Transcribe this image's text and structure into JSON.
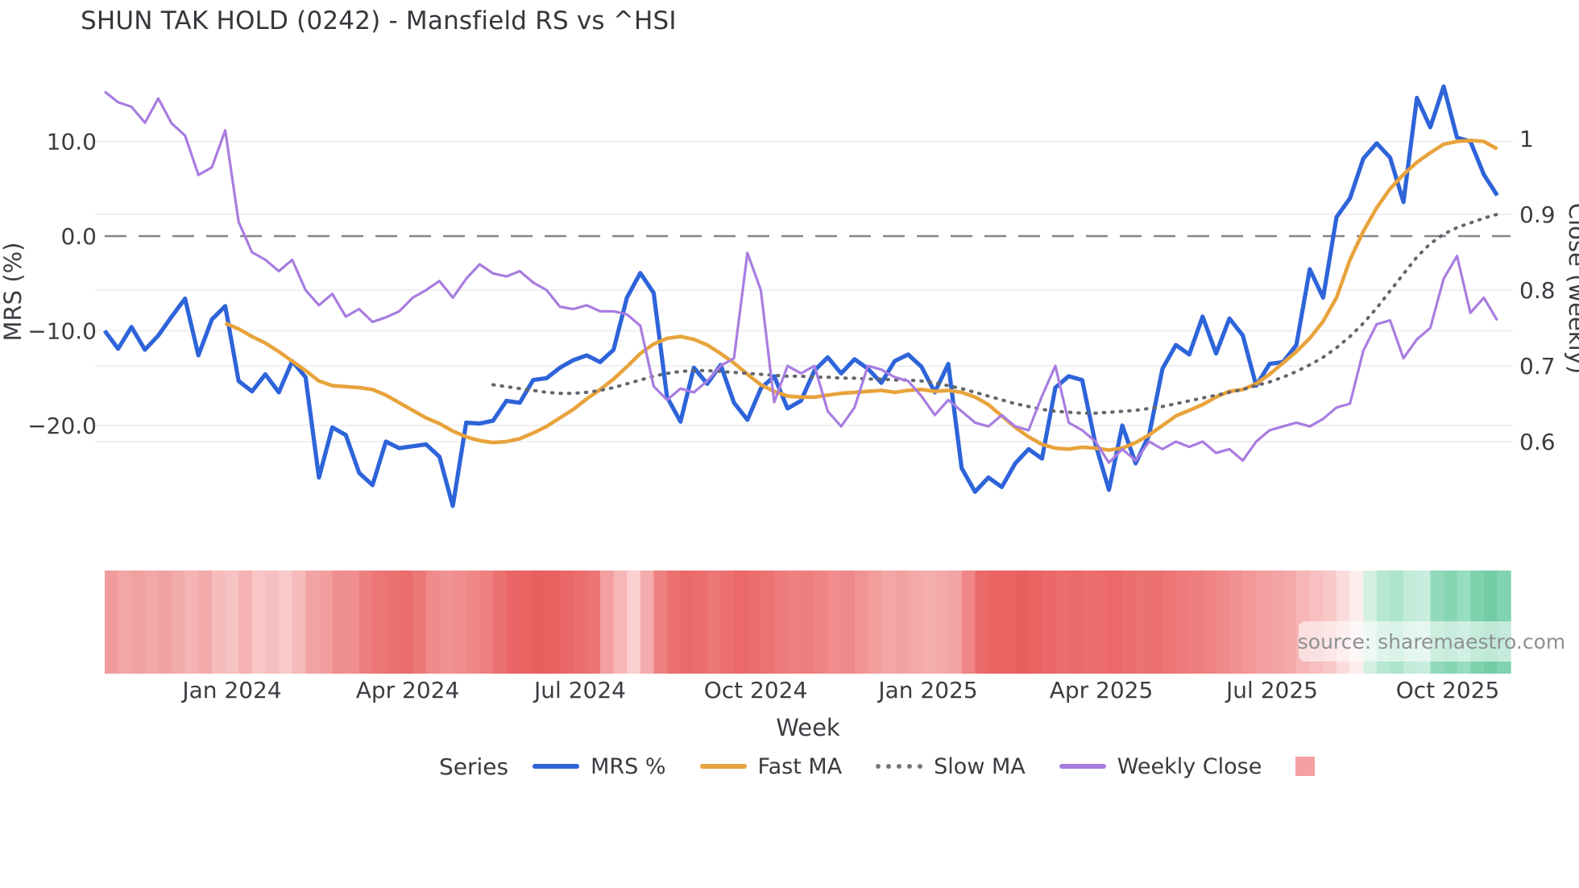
{
  "title": "SHUN TAK HOLD (0242) - Mansfield RS vs ^HSI",
  "source_label": "source: sharemaestro.com",
  "axes": {
    "left": {
      "title": "MRS (%)",
      "tick_labels": [
        "10.0",
        "0.0",
        "−10.0",
        "−20.0"
      ],
      "tick_values": [
        10,
        0,
        -10,
        -20
      ]
    },
    "right": {
      "title": "Close (weekly)",
      "tick_labels": [
        "1",
        "0.9",
        "0.8",
        "0.7",
        "0.6"
      ],
      "tick_values": [
        1,
        0.9,
        0.8,
        0.7,
        0.6
      ]
    },
    "x": {
      "title": "Week",
      "ticks": [
        {
          "label": "Jan 2024",
          "week": 9.5
        },
        {
          "label": "Apr 2024",
          "week": 22.6
        },
        {
          "label": "Jul 2024",
          "week": 35.5
        },
        {
          "label": "Oct 2024",
          "week": 48.6
        },
        {
          "label": "Jan 2025",
          "week": 61.5
        },
        {
          "label": "Apr 2025",
          "week": 74.4
        },
        {
          "label": "Jul 2025",
          "week": 87.2
        },
        {
          "label": "Oct 2025",
          "week": 100.3
        }
      ]
    }
  },
  "legend": {
    "series_title": "Series",
    "items": [
      {
        "label": "MRS %",
        "swatch": "line",
        "color": "#2e64d9"
      },
      {
        "label": "Fast MA",
        "swatch": "line",
        "color": "#e8a33c"
      },
      {
        "label": "Slow MA",
        "swatch": "dotted",
        "color": "#75777e"
      },
      {
        "label": "Weekly Close",
        "swatch": "line",
        "color": "#a87de0"
      },
      {
        "label": "",
        "swatch": "square",
        "color": "#f5a0a5"
      }
    ]
  },
  "colors": {
    "mrs": "#2e64d9",
    "fast_ma": "#e8a33c",
    "slow_ma": "#63666e",
    "weekly_close": "#a87de0",
    "zero_line": "#83838c",
    "gridline": "#ebebf0",
    "tick_text": "#3c3c43"
  },
  "chart_data": {
    "type": "line",
    "title": "SHUN TAK HOLD (0242) - Mansfield RS vs ^HSI",
    "x_unit": "week index, weekly data from Nov 2023 to Nov 2025",
    "xlabel": "Week",
    "ylabel_left": "MRS (%)",
    "ylabel_right": "Close (weekly)",
    "ylim_left": [
      -30,
      17
    ],
    "ylim_right": [
      0.55,
      1.08
    ],
    "zero_reference_line": 0,
    "legend_position": "bottom",
    "grid": true,
    "series": [
      {
        "name": "MRS %",
        "axis": "left",
        "style": "solid",
        "start_week": 0,
        "values": [
          -10.0,
          -11.9,
          -9.6,
          -12.0,
          -10.5,
          -8.5,
          -6.6,
          -12.6,
          -8.8,
          -7.4,
          -15.3,
          -16.4,
          -14.6,
          -16.5,
          -13.2,
          -14.9,
          -25.5,
          -20.2,
          -21.0,
          -25.0,
          -26.3,
          -21.7,
          -22.4,
          -22.2,
          -22.0,
          -23.3,
          -28.5,
          -19.7,
          -19.8,
          -19.5,
          -17.4,
          -17.6,
          -15.2,
          -15.0,
          -13.9,
          -13.1,
          -12.6,
          -13.3,
          -12.0,
          -6.5,
          -3.9,
          -6.0,
          -17.0,
          -19.6,
          -13.9,
          -15.6,
          -13.6,
          -17.6,
          -19.4,
          -16.1,
          -14.8,
          -18.2,
          -17.4,
          -14.2,
          -12.8,
          -14.5,
          -13.0,
          -14.0,
          -15.5,
          -13.2,
          -12.5,
          -13.8,
          -16.5,
          -13.5,
          -24.5,
          -27.0,
          -25.5,
          -26.5,
          -24.0,
          -22.5,
          -23.5,
          -16.0,
          -14.8,
          -15.2,
          -22.0,
          -26.8,
          -20.0,
          -24.0,
          -21.0,
          -14.0,
          -11.5,
          -12.5,
          -8.5,
          -12.4,
          -8.7,
          -10.5,
          -15.8,
          -13.5,
          -13.3,
          -11.5,
          -3.5,
          -6.5,
          2.0,
          4.0,
          8.2,
          9.8,
          8.3,
          3.6,
          14.6,
          11.5,
          15.8,
          10.4,
          10.0,
          6.5,
          4.3
        ]
      },
      {
        "name": "Fast MA",
        "axis": "left",
        "style": "solid",
        "start_week": 9,
        "values": [
          -9.2,
          -9.8,
          -10.6,
          -11.3,
          -12.2,
          -13.2,
          -14.2,
          -15.3,
          -15.8,
          -15.9,
          -16.0,
          -16.2,
          -16.8,
          -17.6,
          -18.4,
          -19.2,
          -19.8,
          -20.6,
          -21.2,
          -21.6,
          -21.8,
          -21.7,
          -21.4,
          -20.8,
          -20.1,
          -19.2,
          -18.3,
          -17.2,
          -16.2,
          -15.1,
          -13.8,
          -12.4,
          -11.4,
          -10.8,
          -10.6,
          -10.9,
          -11.5,
          -12.4,
          -13.4,
          -14.6,
          -15.7,
          -16.4,
          -16.9,
          -17.0,
          -17.0,
          -16.8,
          -16.6,
          -16.5,
          -16.4,
          -16.3,
          -16.5,
          -16.3,
          -16.2,
          -16.4,
          -16.3,
          -16.5,
          -17.0,
          -17.8,
          -19.0,
          -20.2,
          -21.2,
          -22.0,
          -22.4,
          -22.5,
          -22.3,
          -22.4,
          -22.6,
          -22.4,
          -21.8,
          -21.0,
          -20.0,
          -19.0,
          -18.4,
          -17.8,
          -17.0,
          -16.4,
          -16.2,
          -15.6,
          -14.6,
          -13.4,
          -12.2,
          -10.8,
          -9.0,
          -6.5,
          -2.5,
          0.5,
          3.0,
          5.0,
          6.5,
          7.8,
          8.8,
          9.7,
          10.0,
          10.1,
          10.0,
          9.2
        ]
      },
      {
        "name": "Slow MA",
        "axis": "left",
        "style": "dotted",
        "start_week": 29,
        "values": [
          -15.7,
          -15.9,
          -16.1,
          -16.3,
          -16.5,
          -16.6,
          -16.6,
          -16.5,
          -16.3,
          -16.0,
          -15.6,
          -15.2,
          -14.8,
          -14.5,
          -14.3,
          -14.2,
          -14.2,
          -14.3,
          -14.4,
          -14.5,
          -14.6,
          -14.7,
          -14.8,
          -14.8,
          -14.9,
          -14.9,
          -15.0,
          -15.0,
          -15.1,
          -15.1,
          -15.2,
          -15.2,
          -15.3,
          -15.5,
          -15.8,
          -16.1,
          -16.5,
          -16.9,
          -17.3,
          -17.7,
          -18.0,
          -18.3,
          -18.5,
          -18.6,
          -18.7,
          -18.7,
          -18.6,
          -18.5,
          -18.4,
          -18.2,
          -18.0,
          -17.7,
          -17.4,
          -17.1,
          -16.8,
          -16.5,
          -16.2,
          -15.8,
          -15.4,
          -14.9,
          -14.3,
          -13.6,
          -12.8,
          -11.8,
          -10.6,
          -9.2,
          -7.6,
          -5.8,
          -4.0,
          -2.2,
          -0.8,
          0.2,
          0.9,
          1.4,
          1.9,
          2.3
        ]
      },
      {
        "name": "Weekly Close",
        "axis": "right",
        "style": "solid",
        "start_week": 0,
        "values": [
          1.062,
          1.048,
          1.042,
          1.021,
          1.053,
          1.02,
          1.004,
          0.952,
          0.962,
          1.011,
          0.89,
          0.85,
          0.84,
          0.825,
          0.84,
          0.8,
          0.78,
          0.795,
          0.765,
          0.775,
          0.758,
          0.764,
          0.772,
          0.79,
          0.8,
          0.812,
          0.79,
          0.815,
          0.834,
          0.822,
          0.818,
          0.825,
          0.81,
          0.8,
          0.778,
          0.775,
          0.78,
          0.772,
          0.772,
          0.768,
          0.753,
          0.673,
          0.655,
          0.67,
          0.665,
          0.68,
          0.7,
          0.71,
          0.849,
          0.8,
          0.652,
          0.7,
          0.69,
          0.7,
          0.64,
          0.62,
          0.645,
          0.7,
          0.695,
          0.685,
          0.68,
          0.66,
          0.635,
          0.655,
          0.64,
          0.625,
          0.62,
          0.635,
          0.62,
          0.615,
          0.66,
          0.7,
          0.625,
          0.615,
          0.6,
          0.572,
          0.59,
          0.575,
          0.6,
          0.59,
          0.6,
          0.593,
          0.6,
          0.585,
          0.59,
          0.575,
          0.6,
          0.615,
          0.62,
          0.625,
          0.62,
          0.63,
          0.645,
          0.65,
          0.72,
          0.755,
          0.76,
          0.71,
          0.735,
          0.75,
          0.815,
          0.845,
          0.77,
          0.79,
          0.76
        ]
      }
    ],
    "heatmap_strip": {
      "description": "weekly relative-strength heat cells under plot, red = weak, green = strong",
      "colors": [
        "#f19c9c",
        "#f3a6a6",
        "#f1a0a0",
        "#f3a8a8",
        "#f1a2a2",
        "#f3acac",
        "#f5b4b4",
        "#f3aaaa",
        "#f6bcbc",
        "#f7c2c2",
        "#f5b2b2",
        "#f8c6c6",
        "#f7c0c0",
        "#f8caca",
        "#f6baba",
        "#f2a4a4",
        "#f29e9e",
        "#ef8e8e",
        "#f08f8f",
        "#ed7f7f",
        "#ec7676",
        "#ec7171",
        "#eb6c6c",
        "#ed7878",
        "#f08b8b",
        "#f19292",
        "#f08e8e",
        "#ef8787",
        "#ee8080",
        "#ec7272",
        "#ea6666",
        "#ea6363",
        "#e95e5e",
        "#ea6161",
        "#eb6868",
        "#ec6e6e",
        "#ed7474",
        "#f2a0a0",
        "#f6b6b6",
        "#fad0d0",
        "#f4acac",
        "#ee8282",
        "#ec7070",
        "#eb6a6a",
        "#ec6e6e",
        "#ed7676",
        "#ec7070",
        "#eb6969",
        "#ec6d6d",
        "#ed7272",
        "#ee7b7b",
        "#ef8080",
        "#ee7e7e",
        "#ef8484",
        "#f08c8c",
        "#ef8888",
        "#f19494",
        "#f29c9c",
        "#f4a6a6",
        "#f3a2a2",
        "#f4a8a8",
        "#f5aeae",
        "#f4a9a9",
        "#f3a4a4",
        "#ef8585",
        "#eb6b6b",
        "#ea6464",
        "#ea6262",
        "#e95f5f",
        "#ea6363",
        "#eb6868",
        "#ec6d6d",
        "#eb6a6a",
        "#ec6e6e",
        "#ec6c6c",
        "#eb6969",
        "#ec6f6f",
        "#ed7373",
        "#ec7070",
        "#ed7575",
        "#ee7b7b",
        "#ee7e7e",
        "#ef8383",
        "#f08a8a",
        "#f19090",
        "#f29898",
        "#f3a0a0",
        "#f3a3a3",
        "#f4a9a9",
        "#f6b6b6",
        "#f7bfbf",
        "#f8c8c8",
        "#fbdcdc",
        "#fdeeee",
        "#d4f0e3",
        "#b5e7d2",
        "#aee4cc",
        "#c2ebd9",
        "#c8edde",
        "#92dabb",
        "#86d5b3",
        "#97ddc0",
        "#7ed2ae",
        "#72cda6",
        "#81d3b1"
      ]
    }
  }
}
